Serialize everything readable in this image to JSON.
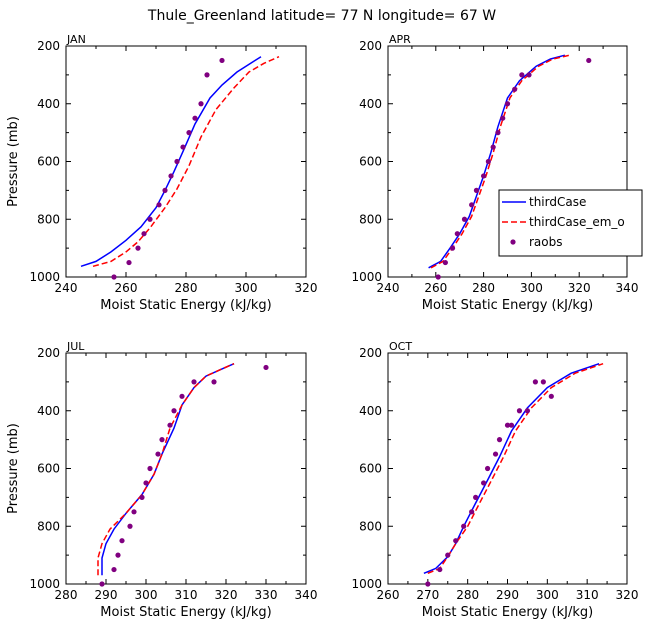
{
  "title": "Thule_Greenland   latitude= 77 N longitude= 67 W",
  "colors": {
    "thirdCase": "#0000ff",
    "thirdCase_em_o": "#ff0000",
    "raobs": "#800080"
  },
  "legend": {
    "location": "inside APR panel, right edge",
    "entries": [
      {
        "label": "thirdCase",
        "style": "solid-blue-line"
      },
      {
        "label": "thirdCase_em_o",
        "style": "dashed-red-line"
      },
      {
        "label": "raobs",
        "style": "purple-dot"
      }
    ]
  },
  "chart_data": [
    {
      "type": "line",
      "panel_label": "JAN",
      "xlabel": "Moist Static Energy (kJ/kg)",
      "ylabel": "Pressure (mb)",
      "xlim": [
        240,
        320
      ],
      "ylim": [
        1000,
        200
      ],
      "y_reversed": true,
      "xticks": [
        "240",
        "260",
        "280",
        "300",
        "320"
      ],
      "yticks": [
        "200",
        "400",
        "600",
        "800",
        "1000"
      ],
      "series": [
        {
          "name": "thirdCase",
          "style": "line",
          "x": [
            245,
            250,
            255,
            260,
            265,
            270,
            273,
            276,
            279,
            283,
            288,
            292,
            297,
            300,
            305
          ],
          "y": [
            963,
            946,
            913,
            873,
            826,
            760,
            700,
            635,
            565,
            470,
            380,
            335,
            290,
            270,
            237
          ]
        },
        {
          "name": "thirdCase_em_o",
          "style": "dashed",
          "x": [
            249,
            255,
            260,
            264,
            268,
            273,
            277,
            281,
            285,
            290,
            296,
            301,
            306,
            311
          ],
          "y": [
            963,
            946,
            913,
            878,
            830,
            760,
            695,
            615,
            515,
            420,
            345,
            290,
            260,
            237
          ]
        },
        {
          "name": "raobs",
          "style": "markers",
          "x": [
            256,
            261,
            264,
            266,
            268,
            271,
            273,
            275,
            277,
            279,
            281,
            283,
            285,
            287,
            292
          ],
          "y": [
            1000,
            950,
            900,
            850,
            800,
            750,
            700,
            650,
            600,
            550,
            500,
            450,
            400,
            300,
            250
          ]
        }
      ]
    },
    {
      "type": "line",
      "panel_label": "APR",
      "xlabel": "Moist Static Energy (kJ/kg)",
      "ylabel": "",
      "xlim": [
        240,
        340
      ],
      "ylim": [
        1000,
        200
      ],
      "y_reversed": true,
      "xticks": [
        "240",
        "260",
        "280",
        "300",
        "320",
        "340"
      ],
      "yticks": [
        "200",
        "400",
        "600",
        "800",
        "1000"
      ],
      "series": [
        {
          "name": "thirdCase",
          "style": "line",
          "x": [
            257,
            262,
            266,
            270,
            274,
            277,
            280,
            283,
            286,
            290,
            295,
            302,
            308,
            314
          ],
          "y": [
            968,
            946,
            900,
            850,
            790,
            720,
            650,
            570,
            480,
            380,
            320,
            270,
            245,
            232
          ]
        },
        {
          "name": "thirdCase_em_o",
          "style": "dashed",
          "x": [
            258,
            263,
            267,
            271,
            275,
            278,
            281,
            284,
            287,
            291,
            296,
            303,
            309,
            316
          ],
          "y": [
            968,
            946,
            900,
            850,
            790,
            720,
            650,
            570,
            480,
            380,
            320,
            270,
            245,
            232
          ]
        },
        {
          "name": "raobs",
          "style": "markers",
          "x": [
            261,
            264,
            267,
            269,
            272,
            275,
            277,
            280,
            282,
            284,
            286,
            288,
            290,
            293,
            296,
            299,
            324
          ],
          "y": [
            1000,
            950,
            900,
            850,
            800,
            750,
            700,
            650,
            600,
            550,
            500,
            450,
            400,
            350,
            300,
            300,
            250
          ]
        }
      ]
    },
    {
      "type": "line",
      "panel_label": "JUL",
      "xlabel": "Moist Static Energy (kJ/kg)",
      "ylabel": "Pressure (mb)",
      "xlim": [
        280,
        340
      ],
      "ylim": [
        1000,
        200
      ],
      "y_reversed": true,
      "xticks": [
        "280",
        "290",
        "300",
        "310",
        "320",
        "330",
        "340"
      ],
      "yticks": [
        "200",
        "400",
        "600",
        "800",
        "1000"
      ],
      "series": [
        {
          "name": "thirdCase",
          "style": "line",
          "x": [
            289,
            289,
            290,
            292,
            295,
            299,
            302,
            304,
            307,
            309,
            312,
            315,
            319,
            322
          ],
          "y": [
            970,
            910,
            860,
            810,
            755,
            690,
            620,
            550,
            460,
            380,
            320,
            280,
            255,
            237
          ]
        },
        {
          "name": "thirdCase_em_o",
          "style": "dashed",
          "x": [
            288,
            288,
            289,
            291,
            295,
            299,
            302,
            304,
            306,
            309,
            312,
            315,
            319,
            322
          ],
          "y": [
            970,
            910,
            860,
            810,
            755,
            690,
            620,
            550,
            460,
            380,
            320,
            280,
            255,
            237
          ]
        },
        {
          "name": "raobs",
          "style": "markers",
          "x": [
            289,
            292,
            293,
            294,
            296,
            297,
            299,
            300,
            301,
            303,
            304,
            306,
            307,
            309,
            312,
            317,
            330
          ],
          "y": [
            1000,
            950,
            900,
            850,
            800,
            750,
            700,
            650,
            600,
            550,
            500,
            450,
            400,
            350,
            300,
            300,
            250
          ]
        }
      ]
    },
    {
      "type": "line",
      "panel_label": "OCT",
      "xlabel": "Moist Static Energy (kJ/kg)",
      "ylabel": "",
      "xlim": [
        260,
        320
      ],
      "ylim": [
        1000,
        200
      ],
      "y_reversed": true,
      "xticks": [
        "260",
        "270",
        "280",
        "290",
        "300",
        "310",
        "320"
      ],
      "yticks": [
        "200",
        "400",
        "600",
        "800",
        "1000"
      ],
      "series": [
        {
          "name": "thirdCase",
          "style": "line",
          "x": [
            269,
            272,
            275,
            277,
            279,
            282,
            285,
            288,
            291,
            295,
            300,
            306,
            313
          ],
          "y": [
            963,
            946,
            905,
            860,
            800,
            720,
            640,
            560,
            470,
            390,
            320,
            270,
            237
          ]
        },
        {
          "name": "thirdCase_em_o",
          "style": "dashed",
          "x": [
            270,
            273,
            275,
            277,
            280,
            283,
            286,
            289,
            292,
            296,
            301,
            307,
            314
          ],
          "y": [
            963,
            946,
            905,
            860,
            800,
            720,
            640,
            560,
            470,
            390,
            320,
            270,
            237
          ]
        },
        {
          "name": "raobs",
          "style": "markers",
          "x": [
            270,
            273,
            275,
            277,
            279,
            281,
            282,
            284,
            285,
            287,
            288,
            290,
            291,
            293,
            295,
            297,
            299,
            301
          ],
          "y": [
            1000,
            950,
            900,
            850,
            800,
            750,
            700,
            650,
            600,
            550,
            500,
            450,
            450,
            400,
            400,
            300,
            300,
            350
          ]
        }
      ]
    }
  ]
}
